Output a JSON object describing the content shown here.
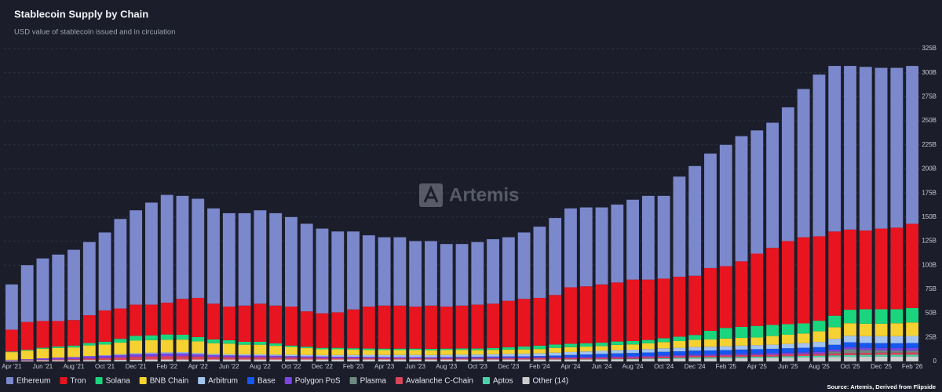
{
  "chart_data": {
    "type": "stacked_bar",
    "title": "Stablecoin Supply by Chain",
    "subtitle": "USD value of stablecoin issued and in circulation",
    "watermark": "Artemis",
    "source": "Source: Artemis, Derived from Flipside",
    "categories": [
      "Apr '21",
      null,
      "Jun '21",
      null,
      "Aug '21",
      null,
      "Oct '21",
      null,
      "Dec '21",
      null,
      "Feb '22",
      null,
      "Apr '22",
      null,
      "Jun '22",
      null,
      "Aug '22",
      null,
      "Oct '22",
      null,
      "Dec '22",
      null,
      "Feb '23",
      null,
      "Apr '23",
      null,
      "Jun '23",
      null,
      "Aug '23",
      null,
      "Oct '23",
      null,
      "Dec '23",
      null,
      "Feb '24",
      null,
      "Apr '24",
      null,
      "Jun '24",
      null,
      "Aug '24",
      null,
      "Oct '24",
      null,
      "Dec '24",
      null,
      "Feb '25",
      null,
      "Apr '25",
      null,
      "Jun '25",
      null,
      "Aug '25",
      null,
      "Oct '25",
      null,
      "Dec '25",
      null,
      "Feb '26"
    ],
    "series": [
      {
        "name": "Ethereum",
        "color": "#7b88cc",
        "values": [
          47,
          59,
          65,
          69,
          73,
          76,
          81,
          93,
          98,
          106,
          112,
          107,
          103,
          99,
          97,
          96,
          97,
          96,
          93,
          91,
          88,
          84,
          81,
          74,
          71,
          71,
          68,
          67,
          65,
          64,
          65,
          67,
          66,
          69,
          74,
          80,
          82,
          82,
          80,
          81,
          83,
          87,
          86,
          104,
          114,
          119,
          126,
          130,
          128,
          130,
          139,
          154,
          168,
          172,
          170,
          170,
          167,
          166,
          164
        ]
      },
      {
        "name": "Tron",
        "color": "#e8141f",
        "values": [
          22.8,
          28.9,
          27.8,
          26.5,
          26.5,
          28.9,
          32.5,
          31.5,
          32.4,
          31.9,
          33,
          37.3,
          40.7,
          37.1,
          35,
          37.6,
          39.6,
          39.3,
          40.5,
          36.7,
          35.9,
          36.9,
          40.3,
          43.6,
          44.7,
          44.7,
          43.7,
          44.9,
          43.7,
          44.5,
          45.6,
          46,
          48.2,
          49.5,
          49.6,
          51.4,
          58.7,
          59.1,
          60.5,
          61.3,
          63.8,
          62.7,
          61.9,
          62.3,
          61.5,
          65.2,
          64.2,
          68.1,
          75.1,
          80.1,
          86.3,
          89.5,
          87.7,
          87.5,
          83.3,
          81.8,
          83.8,
          84.8,
          87.5
        ]
      },
      {
        "name": "Solana",
        "color": "#1bd47e",
        "values": [
          0.5,
          0.8,
          1,
          1.5,
          2,
          2.5,
          3,
          4,
          5,
          5,
          5.5,
          5,
          4.5,
          4,
          3.5,
          3,
          3,
          2.5,
          1.5,
          1.5,
          1.5,
          1.5,
          1.5,
          1.5,
          1.5,
          1.5,
          1.5,
          1.5,
          1.5,
          1.5,
          1.7,
          2,
          2.5,
          3,
          3.5,
          3.5,
          3.5,
          3.5,
          3.5,
          3.5,
          3.5,
          3.5,
          4,
          4.5,
          5,
          9,
          11,
          11.5,
          12,
          11.5,
          11,
          10.5,
          11,
          12,
          14,
          15,
          15,
          14.5,
          15
        ]
      },
      {
        "name": "BNB Chain",
        "color": "#f5d131",
        "values": [
          8,
          9,
          10,
          10,
          10,
          11,
          11,
          12,
          13,
          13,
          13,
          13,
          12,
          11,
          11,
          10,
          10,
          9,
          8,
          7,
          6,
          6,
          5.5,
          5,
          5,
          5,
          5,
          5,
          5,
          5,
          4.5,
          4.5,
          4.5,
          4.5,
          4.5,
          5,
          5,
          5,
          5,
          5.5,
          5.5,
          6,
          6.5,
          7,
          7.5,
          7.5,
          8,
          8,
          8,
          9,
          9.5,
          10,
          11,
          12,
          13,
          13,
          13,
          13.5,
          14
        ]
      },
      {
        "name": "Arbitrum",
        "color": "#a3c4ee",
        "values": [
          0,
          0,
          0,
          0,
          0,
          0.2,
          0.5,
          0.8,
          1,
          1,
          1.2,
          1.3,
          1.3,
          1.2,
          1.2,
          1.2,
          1.3,
          1.3,
          1.4,
          1.5,
          1.5,
          1.7,
          1.9,
          2.2,
          2.2,
          2.3,
          2.3,
          2.3,
          2.3,
          2.3,
          2.4,
          2.5,
          2.6,
          2.7,
          2.8,
          3,
          3.1,
          3.2,
          3.2,
          3.3,
          3.4,
          3.5,
          3.6,
          3.7,
          3.8,
          3.9,
          4,
          4.1,
          4.2,
          4.3,
          4.5,
          4.8,
          5.5,
          6.2,
          6.8,
          7,
          7.2,
          7.3,
          7.4
        ]
      },
      {
        "name": "Base",
        "color": "#1657f0",
        "values": [
          0,
          0,
          0,
          0,
          0,
          0,
          0,
          0,
          0,
          0,
          0,
          0,
          0,
          0,
          0,
          0,
          0,
          0,
          0,
          0,
          0,
          0,
          0,
          0,
          0,
          0,
          0,
          0,
          0.2,
          0.4,
          0.5,
          0.6,
          0.7,
          0.8,
          1,
          1.5,
          2,
          2.5,
          3,
          3.2,
          3.5,
          3.6,
          3.7,
          3.8,
          4,
          4.1,
          4.2,
          4.3,
          4.4,
          4.5,
          4.6,
          4.7,
          4.8,
          4.9,
          5,
          5,
          5,
          5.1,
          5.2
        ]
      },
      {
        "name": "Polygon PoS",
        "color": "#7a45e0",
        "values": [
          0.5,
          1,
          1.5,
          2,
          2.2,
          2.4,
          2.5,
          2.6,
          2.8,
          2.9,
          3,
          3,
          2.5,
          2.2,
          2,
          2,
          2,
          1.9,
          1.8,
          1.7,
          1.6,
          1.5,
          1.5,
          1.4,
          1.4,
          1.3,
          1.3,
          1.2,
          1.2,
          1.2,
          1.2,
          1.2,
          1.2,
          1.2,
          1.2,
          1.2,
          1.2,
          1.2,
          1.2,
          1.3,
          1.3,
          1.3,
          1.4,
          1.4,
          1.4,
          1.5,
          1.5,
          1.6,
          1.6,
          1.7,
          1.8,
          1.9,
          2,
          2.1,
          2.2,
          2.3,
          2.4,
          2.5,
          2.6
        ]
      },
      {
        "name": "Plasma",
        "color": "#6f8a83",
        "values": [
          0,
          0,
          0,
          0,
          0,
          0,
          0,
          0,
          0,
          0,
          0,
          0,
          0,
          0,
          0,
          0,
          0,
          0,
          0,
          0,
          0,
          0,
          0,
          0,
          0,
          0,
          0,
          0,
          0,
          0,
          0,
          0,
          0,
          0,
          0,
          0,
          0,
          0,
          0,
          0,
          0,
          0,
          0,
          0,
          0,
          0,
          0,
          0,
          0,
          0,
          0,
          0,
          0,
          2,
          4,
          3,
          2.5,
          2.2,
          2
        ]
      },
      {
        "name": "Avalanche C-Chain",
        "color": "#d9455a",
        "values": [
          0.2,
          0.3,
          0.5,
          0.8,
          1,
          1.5,
          2,
          2.5,
          3,
          3.2,
          3.3,
          3.4,
          3,
          2.5,
          2.3,
          2.2,
          2.1,
          2,
          1.8,
          1.6,
          1.5,
          1.4,
          1.3,
          1.3,
          1.2,
          1.2,
          1.2,
          1.1,
          1.1,
          1.1,
          1.1,
          1.1,
          1.2,
          1.2,
          1.3,
          1.3,
          1.3,
          1.3,
          1.3,
          1.4,
          1.4,
          1.4,
          1.5,
          1.5,
          1.6,
          1.6,
          1.7,
          1.7,
          1.8,
          1.8,
          1.9,
          1.9,
          2,
          2,
          2.1,
          2.1,
          2.2,
          2.2,
          2.3
        ]
      },
      {
        "name": "Aptos",
        "color": "#4fd1a8",
        "values": [
          0,
          0,
          0,
          0,
          0,
          0,
          0,
          0,
          0,
          0,
          0,
          0,
          0,
          0,
          0,
          0,
          0,
          0,
          0,
          0,
          0,
          0,
          0,
          0,
          0,
          0,
          0,
          0,
          0,
          0,
          0,
          0.1,
          0.1,
          0.1,
          0.1,
          0.1,
          0.2,
          0.2,
          0.3,
          0.3,
          0.4,
          0.6,
          0.8,
          1,
          1.2,
          1.2,
          1.2,
          1.3,
          1.3,
          1.3,
          1.4,
          1.5,
          1.6,
          1.7,
          1.8,
          1.8,
          1.9,
          1.9,
          2
        ]
      },
      {
        "name": "Other (14)",
        "color": "#cccccc",
        "values": [
          1,
          1,
          1.2,
          1.2,
          1.3,
          1.5,
          1.5,
          1.6,
          1.8,
          2,
          2,
          2,
          2,
          2,
          2,
          2,
          2,
          2,
          2,
          2,
          2,
          2,
          2,
          2,
          2,
          2,
          2,
          2,
          2,
          2,
          2,
          2,
          2,
          2,
          2,
          2,
          2,
          2,
          2,
          2.2,
          2.2,
          2.4,
          2.6,
          2.8,
          3,
          3,
          3.2,
          3.4,
          3.6,
          3.8,
          4,
          4.2,
          4.4,
          4.6,
          4.8,
          5,
          5,
          5,
          5
        ]
      }
    ],
    "ylim": [
      0,
      325
    ],
    "yticks": [
      0,
      {
        "value": 25,
        "label": "25B"
      },
      {
        "value": 50,
        "label": "50B"
      },
      {
        "value": 75,
        "label": "75B"
      },
      {
        "value": 100,
        "label": "100B"
      },
      {
        "value": 125,
        "label": "125B"
      },
      {
        "value": 150,
        "label": "150B"
      },
      {
        "value": 175,
        "label": "175B"
      },
      {
        "value": 200,
        "label": "200B"
      },
      {
        "value": 225,
        "label": "225B"
      },
      {
        "value": 250,
        "label": "250B"
      },
      {
        "value": 275,
        "label": "275B"
      },
      {
        "value": 300,
        "label": "300B"
      },
      {
        "value": 325,
        "label": "325B"
      }
    ],
    "grid": true,
    "legend": "bottom"
  }
}
